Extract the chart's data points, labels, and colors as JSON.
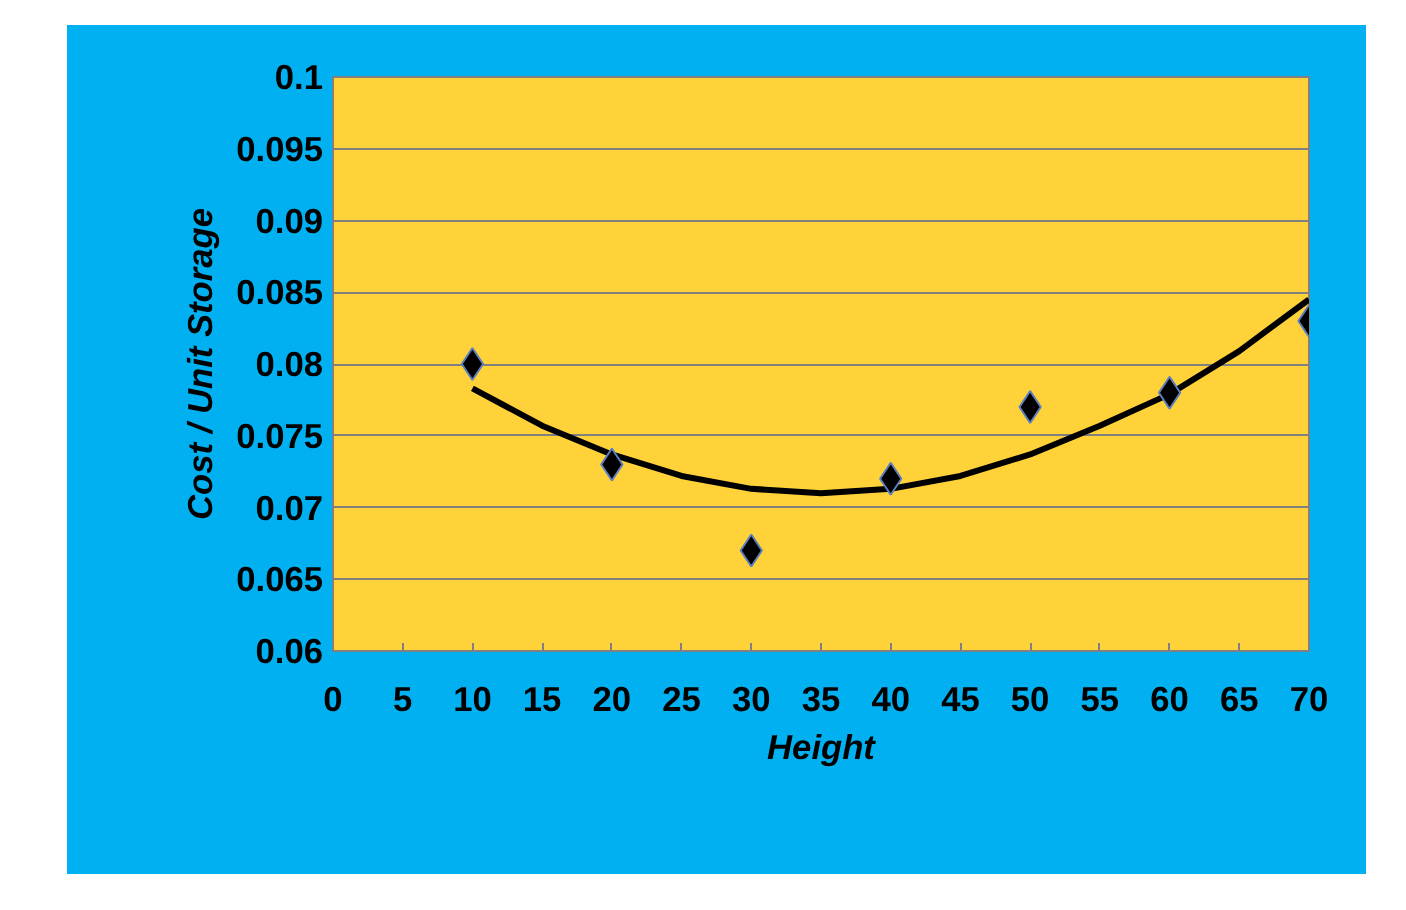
{
  "chart_data": {
    "type": "scatter",
    "xlabel": "Height",
    "ylabel": "Cost / Unit Storage",
    "x": [
      10,
      20,
      30,
      40,
      50,
      60,
      70
    ],
    "series": [
      {
        "color": "#000000",
        "marker": "diamond",
        "values": [
          0.08,
          0.073,
          0.067,
          0.072,
          0.077,
          0.078,
          0.083
        ]
      },
      {
        "type": "line",
        "color": "#000000",
        "x": [
          10,
          15,
          20,
          25,
          30,
          35,
          40,
          45,
          50,
          55,
          60,
          65,
          70
        ],
        "values": [
          0.0783,
          0.0757,
          0.0737,
          0.0722,
          0.0713,
          0.071,
          0.0713,
          0.0722,
          0.0737,
          0.0757,
          0.0779,
          0.0809,
          0.0845
        ]
      }
    ],
    "xlim": [
      0,
      70
    ],
    "xticks": [
      0,
      5,
      10,
      15,
      20,
      25,
      30,
      35,
      40,
      45,
      50,
      55,
      60,
      65,
      70
    ],
    "ylim": [
      0.06,
      0.1
    ],
    "yticks": [
      0.06,
      0.065,
      0.07,
      0.075,
      0.08,
      0.085,
      0.09,
      0.095,
      0.1
    ],
    "grid": "y"
  }
}
